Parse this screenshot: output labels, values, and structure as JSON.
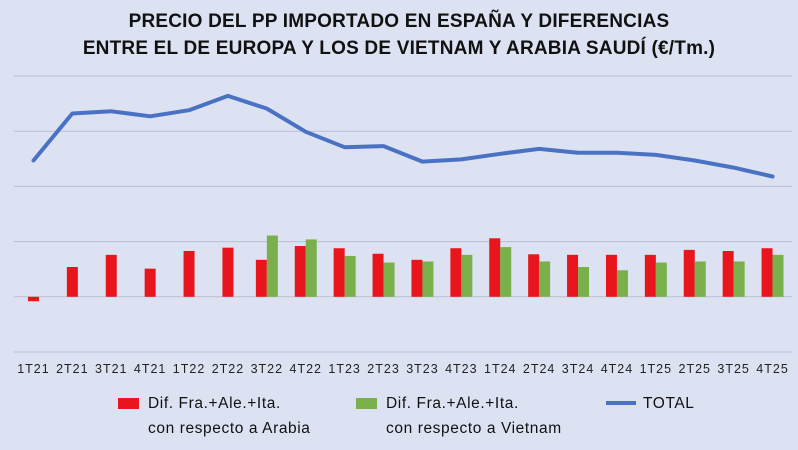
{
  "title": {
    "line1": "PRECIO DEL PP IMPORTADO EN ESPAÑA Y DIFERENCIAS",
    "line2": "ENTRE EL DE EUROPA Y LOS DE VIETNAM Y ARABIA SAUDÍ (€/Tm.)"
  },
  "colors": {
    "background": "#dde2f2",
    "grid": "#b9bfd2",
    "total": "#4a72c4",
    "arabia": "#e8161c",
    "vietnam": "#79b04c"
  },
  "legend": {
    "arabia_line1": "Dif. Fra.+Ale.+Ita.",
    "arabia_line2": "con respecto a Arabia",
    "vietnam_line1": "Dif. Fra.+Ale.+Ita.",
    "vietnam_line2": "con respecto a Vietnam",
    "total": "TOTAL"
  },
  "chart_data": {
    "type": "bar+line",
    "title": "PRECIO DEL PP IMPORTADO EN ESPAÑA Y DIFERENCIAS ENTRE EL DE EUROPA Y LOS DE VIETNAM Y ARABIA SAUDÍ (€/Tm.)",
    "categories": [
      "1T21",
      "2T21",
      "3T21",
      "4T21",
      "1T22",
      "2T22",
      "3T22",
      "4T22",
      "1T23",
      "2T23",
      "3T23",
      "4T23",
      "1T24",
      "2T24",
      "3T24",
      "4T24",
      "1T25",
      "2T25",
      "3T25",
      "4T25"
    ],
    "ylim": [
      -500,
      2000
    ],
    "gridlines": [
      -500,
      0,
      500,
      1000,
      1500,
      2000
    ],
    "y_tick_labels_shown": false,
    "series": [
      {
        "name": "Dif. Fra.+Ale.+Ita. con respecto a Arabia",
        "kind": "bar",
        "values": [
          -40,
          270,
          380,
          255,
          415,
          445,
          335,
          460,
          440,
          390,
          335,
          440,
          530,
          385,
          380,
          380,
          380,
          425,
          415,
          440
        ]
      },
      {
        "name": "Dif. Fra.+Ale.+Ita. con respecto a Vietnam",
        "kind": "bar",
        "values": [
          null,
          null,
          null,
          null,
          null,
          null,
          555,
          520,
          370,
          310,
          320,
          380,
          450,
          320,
          270,
          240,
          310,
          320,
          320,
          380
        ]
      },
      {
        "name": "TOTAL",
        "kind": "line",
        "values": [
          1235,
          1660,
          1680,
          1635,
          1690,
          1820,
          1705,
          1495,
          1355,
          1365,
          1225,
          1245,
          1295,
          1340,
          1305,
          1305,
          1285,
          1235,
          1170,
          1090
        ]
      }
    ]
  }
}
